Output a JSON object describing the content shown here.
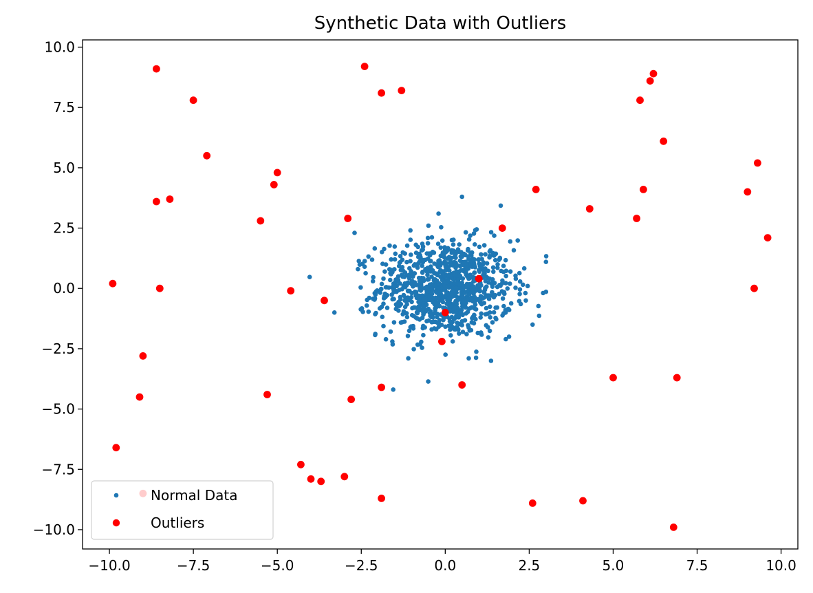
{
  "chart_data": {
    "type": "scatter",
    "title": "Synthetic Data with Outliers",
    "xlabel": "",
    "ylabel": "",
    "xlim": [
      -10.8,
      10.5
    ],
    "ylim": [
      -10.8,
      10.3
    ],
    "x_ticks": [
      -10.0,
      -7.5,
      -5.0,
      -2.5,
      0.0,
      2.5,
      5.0,
      7.5,
      10.0
    ],
    "y_ticks": [
      10.0,
      7.5,
      5.0,
      2.5,
      0.0,
      -2.5,
      -5.0,
      -7.5,
      -10.0
    ],
    "x_tick_labels": [
      "−10.0",
      "−7.5",
      "−5.0",
      "−2.5",
      "0.0",
      "2.5",
      "5.0",
      "7.5",
      "10.0"
    ],
    "y_tick_labels": [
      "10.0",
      "7.5",
      "5.0",
      "2.5",
      "0.0",
      "−2.5",
      "−5.0",
      "−7.5",
      "−10.0"
    ],
    "grid": false,
    "legend_position": "lower-left",
    "series": [
      {
        "name": "Normal Data",
        "color": "#1f77b4",
        "marker_size": "small",
        "distribution": "approx. standard normal around (0, 0), about 1000 points",
        "x": [
          -0.9,
          -0.7,
          -0.5,
          -0.3,
          -0.1,
          0.1,
          0.3,
          0.5,
          0.7,
          0.9,
          -0.8,
          -0.4,
          0.0,
          0.4,
          0.8,
          -0.6,
          -0.2,
          0.2,
          0.6,
          -1.2,
          1.2,
          -1.5,
          1.5,
          -1.8,
          1.8,
          -2.1,
          2.1,
          -2.4,
          2.4,
          3.0,
          -2.6,
          0.5,
          -3.3,
          -1.1,
          0.7,
          -0.2,
          1.9,
          2.6,
          -2.7,
          -0.5
        ],
        "y": [
          0.2,
          -0.4,
          0.8,
          -0.9,
          0.5,
          -0.3,
          1.0,
          -0.6,
          0.4,
          -0.1,
          1.3,
          -1.4,
          1.6,
          -1.2,
          0.9,
          0.0,
          -0.7,
          0.6,
          1.1,
          -0.5,
          0.3,
          1.2,
          -0.8,
          0.7,
          -1.0,
          -0.2,
          0.4,
          0.9,
          -0.5,
          1.1,
          0.8,
          3.8,
          -1.0,
          -2.9,
          -2.9,
          3.1,
          -2.0,
          -1.5,
          2.3,
          2.6
        ]
      },
      {
        "name": "Outliers",
        "color": "#ff0000",
        "marker_size": "large",
        "x": [
          -8.6,
          -7.5,
          -7.1,
          -8.6,
          -8.2,
          -9.9,
          -8.5,
          -9.0,
          -9.1,
          -9.8,
          -9.0,
          -5.0,
          -5.1,
          -5.5,
          -4.6,
          -3.6,
          -5.3,
          -4.3,
          -4.0,
          -3.7,
          -3.0,
          -2.4,
          -1.9,
          -1.3,
          -2.9,
          -2.8,
          -1.9,
          -1.9,
          0.0,
          -0.1,
          1.0,
          0.5,
          1.7,
          2.6,
          2.7,
          4.1,
          4.3,
          5.0,
          5.8,
          6.1,
          6.2,
          6.5,
          5.9,
          5.7,
          6.9,
          6.8,
          9.3,
          9.0,
          9.6,
          9.2
        ],
        "y": [
          9.1,
          7.8,
          5.5,
          3.6,
          3.7,
          0.2,
          0.0,
          -2.8,
          -4.5,
          -6.6,
          -8.5,
          4.8,
          4.3,
          2.8,
          -0.1,
          -0.5,
          -4.4,
          -7.3,
          -7.9,
          -8.0,
          -7.8,
          9.2,
          8.1,
          8.2,
          2.9,
          -4.6,
          -4.1,
          -8.7,
          -1.0,
          -2.2,
          0.4,
          -4.0,
          2.5,
          -8.9,
          4.1,
          -8.8,
          3.3,
          -3.7,
          7.8,
          8.6,
          8.9,
          6.1,
          4.1,
          2.9,
          -3.7,
          -9.9,
          5.2,
          4.0,
          2.1,
          0.0
        ]
      }
    ]
  }
}
